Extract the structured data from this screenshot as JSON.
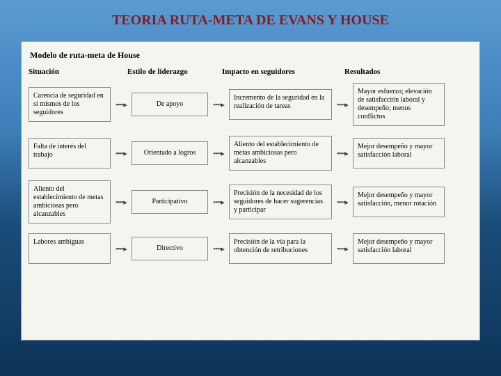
{
  "title": "TEORIA RUTA-META DE EVANS Y  HOUSE",
  "diagram": {
    "type": "flowchart",
    "model_title": "Modelo de ruta-meta de House",
    "background_color": "#f5f5f0",
    "box_border_color": "#888888",
    "text_color": "#222222",
    "title_color": "#8b1a1a",
    "headers": [
      "Situación",
      "Estilo de liderazgo",
      "Impacto en seguidores",
      "Resultados"
    ],
    "rows": [
      {
        "situacion": "Carencia de seguridad en sí mismos de los seguidores",
        "estilo": "De apoyo",
        "impacto": "Incremento de la seguridad en la realización de tareas",
        "resultado": "Mayor esfuerzo; elevación de satisfacción laboral y desempeño; menos conflictos"
      },
      {
        "situacion": "Falta de interés del trabajo",
        "estilo": "Orientado a logros",
        "impacto": "Aliento del establecimiento de metas ambiciosas pero alcanzables",
        "resultado": "Mejor desempeño y mayor satisfacción laboral"
      },
      {
        "situacion": "Aliento del establecimiento de metas ambiciosas pero alcanzables",
        "estilo": "Participativo",
        "impacto": "Precisión de la necesidad de los seguidores de hacer sugerencias y participar",
        "resultado": "Mejor desempeño y mayor satisfacción, menor rotación"
      },
      {
        "situacion": "Labores ambiguas",
        "estilo": "Directivo",
        "impacto": "Precisión de la vía para la obtención de retribuciones",
        "resultado": "Mejor desempeño y mayor satisfacción laboral"
      }
    ],
    "arrow_glyph": "••••▸"
  }
}
